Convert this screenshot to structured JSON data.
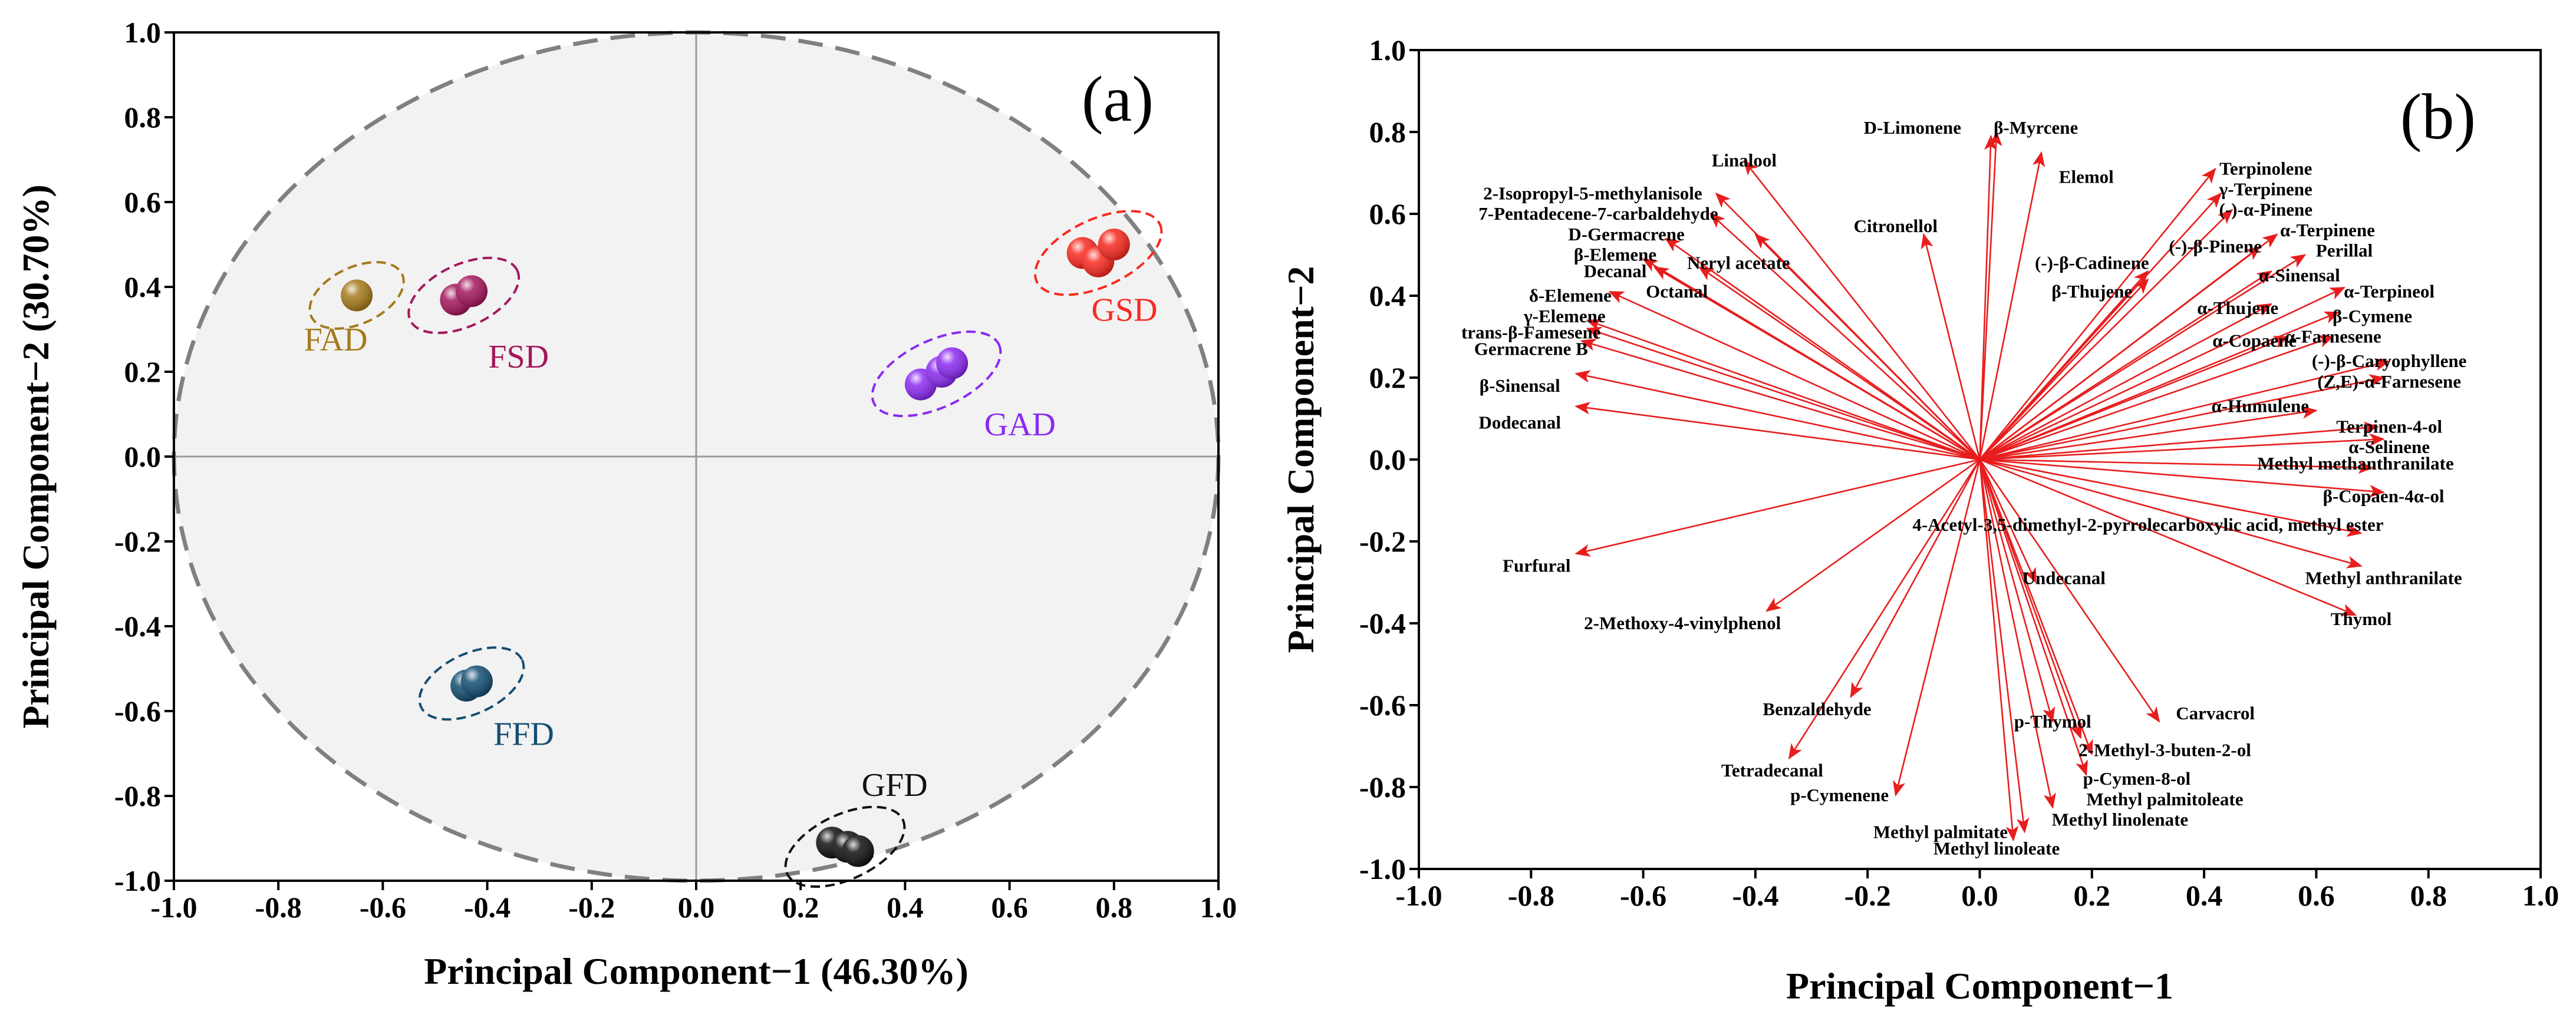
{
  "chart_data": [
    {
      "type": "scatter",
      "panel_label": "(a)",
      "xlabel": "Principal Component−1 (46.30%)",
      "ylabel": "Principal Component−2 (30.70%)",
      "xlim": [
        -1.0,
        1.0
      ],
      "ylim": [
        -1.0,
        1.0
      ],
      "xticks": [
        "-1.0",
        "-0.8",
        "-0.6",
        "-0.4",
        "-0.2",
        "0.0",
        "0.2",
        "0.4",
        "0.6",
        "0.8",
        "1.0"
      ],
      "yticks": [
        "1.0",
        "0.8",
        "0.6",
        "0.4",
        "0.2",
        "0.0",
        "-0.2",
        "-0.4",
        "-0.6",
        "-0.8",
        "-1.0"
      ],
      "grid": false,
      "confidence_circle": {
        "radius": 1.0
      },
      "series": [
        {
          "name": "FAD",
          "color": "#a57a1b",
          "points": [
            [
              -0.65,
              0.38
            ]
          ],
          "label_at": [
            -0.69,
            0.25
          ]
        },
        {
          "name": "FSD",
          "color": "#a3185c",
          "points": [
            [
              -0.46,
              0.37
            ],
            [
              -0.43,
              0.39
            ]
          ],
          "label_at": [
            -0.34,
            0.21
          ]
        },
        {
          "name": "GSD",
          "color": "#f72a20",
          "points": [
            [
              0.74,
              0.48
            ],
            [
              0.77,
              0.46
            ],
            [
              0.8,
              0.5
            ]
          ],
          "label_at": [
            0.82,
            0.32
          ]
        },
        {
          "name": "GAD",
          "color": "#8b2bf0",
          "points": [
            [
              0.43,
              0.17
            ],
            [
              0.47,
              0.2
            ],
            [
              0.49,
              0.22
            ]
          ],
          "label_at": [
            0.62,
            0.05
          ]
        },
        {
          "name": "FFD",
          "color": "#144e72",
          "points": [
            [
              -0.44,
              -0.54
            ],
            [
              -0.42,
              -0.53
            ]
          ],
          "label_at": [
            -0.33,
            -0.68
          ]
        },
        {
          "name": "GFD",
          "color": "#111111",
          "points": [
            [
              0.26,
              -0.91
            ],
            [
              0.29,
              -0.92
            ],
            [
              0.31,
              -0.93
            ]
          ],
          "label_at": [
            0.38,
            -0.8
          ]
        }
      ]
    },
    {
      "type": "biplot",
      "panel_label": "(b)",
      "xlabel": "Principal Component−1",
      "ylabel": "Principal Component−2",
      "xlim": [
        -1.0,
        1.0
      ],
      "ylim": [
        -1.0,
        1.0
      ],
      "xticks": [
        "-1.0",
        "-0.8",
        "-0.6",
        "-0.4",
        "-0.2",
        "0.0",
        "0.2",
        "0.4",
        "0.6",
        "0.8",
        "1.0"
      ],
      "yticks": [
        "1.0",
        "0.8",
        "0.6",
        "0.4",
        "0.2",
        "0.0",
        "-0.2",
        "-0.4",
        "-0.6",
        "-0.8",
        "-1.0"
      ],
      "arrow_color": "#e81d1d",
      "loadings": [
        {
          "name": "D-Limonene",
          "x": 0.02,
          "y": 0.79,
          "label_at": [
            -0.12,
            0.81
          ]
        },
        {
          "name": "β-Myrcene",
          "x": 0.03,
          "y": 0.8,
          "label_at": [
            0.1,
            0.81
          ]
        },
        {
          "name": "Elemol",
          "x": 0.11,
          "y": 0.75,
          "label_at": [
            0.19,
            0.69
          ]
        },
        {
          "name": "Linalool",
          "x": -0.42,
          "y": 0.73,
          "label_at": [
            -0.42,
            0.73
          ]
        },
        {
          "name": "Citronellol",
          "x": -0.1,
          "y": 0.55,
          "label_at": [
            -0.15,
            0.57
          ]
        },
        {
          "name": "2-Isopropyl-5-methylanisole",
          "x": -0.47,
          "y": 0.65,
          "label_at": [
            -0.69,
            0.65
          ]
        },
        {
          "name": "7-Pentadecene-7-carbaldehyde",
          "x": -0.48,
          "y": 0.6,
          "label_at": [
            -0.68,
            0.6
          ]
        },
        {
          "name": "D-Germacrene",
          "x": -0.56,
          "y": 0.54,
          "label_at": [
            -0.63,
            0.55
          ]
        },
        {
          "name": "β-Elemene",
          "x": -0.6,
          "y": 0.49,
          "label_at": [
            -0.65,
            0.5
          ]
        },
        {
          "name": "Decanal",
          "x": -0.58,
          "y": 0.47,
          "label_at": [
            -0.65,
            0.46
          ]
        },
        {
          "name": "Neryl acetate",
          "x": -0.4,
          "y": 0.55,
          "label_at": [
            -0.43,
            0.48
          ]
        },
        {
          "name": "Octanal",
          "x": -0.5,
          "y": 0.47,
          "label_at": [
            -0.54,
            0.41
          ]
        },
        {
          "name": "δ-Elemene",
          "x": -0.66,
          "y": 0.41,
          "label_at": [
            -0.73,
            0.4
          ]
        },
        {
          "name": "γ-Elemene",
          "x": -0.7,
          "y": 0.34,
          "label_at": [
            -0.74,
            0.35
          ]
        },
        {
          "name": "trans-β-Famesene",
          "x": -0.7,
          "y": 0.32,
          "label_at": [
            -0.8,
            0.31
          ]
        },
        {
          "name": "Germacrene B",
          "x": -0.71,
          "y": 0.29,
          "label_at": [
            -0.8,
            0.27
          ]
        },
        {
          "name": "β-Sinensal",
          "x": -0.72,
          "y": 0.21,
          "label_at": [
            -0.82,
            0.18
          ]
        },
        {
          "name": "Dodecanal",
          "x": -0.72,
          "y": 0.13,
          "label_at": [
            -0.82,
            0.09
          ]
        },
        {
          "name": "Furfural",
          "x": -0.72,
          "y": -0.23,
          "label_at": [
            -0.79,
            -0.26
          ]
        },
        {
          "name": "2-Methoxy-4-vinylphenol",
          "x": -0.38,
          "y": -0.37,
          "label_at": [
            -0.53,
            -0.4
          ]
        },
        {
          "name": "Benzaldehyde",
          "x": -0.23,
          "y": -0.58,
          "label_at": [
            -0.29,
            -0.61
          ]
        },
        {
          "name": "Tetradecanal",
          "x": -0.34,
          "y": -0.73,
          "label_at": [
            -0.37,
            -0.76
          ]
        },
        {
          "name": "p-Cymenene",
          "x": -0.15,
          "y": -0.82,
          "label_at": [
            -0.25,
            -0.82
          ]
        },
        {
          "name": "Methyl palmitate",
          "x": 0.06,
          "y": -0.93,
          "label_at": [
            -0.07,
            -0.91
          ]
        },
        {
          "name": "Methyl linoleate",
          "x": 0.08,
          "y": -0.91,
          "label_at": [
            0.03,
            -0.95
          ]
        },
        {
          "name": "Methyl linolenate",
          "x": 0.13,
          "y": -0.85,
          "label_at": [
            0.25,
            -0.88
          ]
        },
        {
          "name": "Methyl palmitoleate",
          "x": 0.19,
          "y": -0.77,
          "label_at": [
            0.33,
            -0.83
          ]
        },
        {
          "name": "p-Cymen-8-ol",
          "x": 0.2,
          "y": -0.72,
          "label_at": [
            0.28,
            -0.78
          ]
        },
        {
          "name": "2-Methyl-3-buten-2-ol",
          "x": 0.18,
          "y": -0.68,
          "label_at": [
            0.33,
            -0.71
          ]
        },
        {
          "name": "p-Thymol",
          "x": 0.13,
          "y": -0.64,
          "label_at": [
            0.13,
            -0.64
          ]
        },
        {
          "name": "Carvacrol",
          "x": 0.32,
          "y": -0.64,
          "label_at": [
            0.42,
            -0.62
          ]
        },
        {
          "name": "Undecanal",
          "x": 0.1,
          "y": -0.3,
          "label_at": [
            0.15,
            -0.29
          ]
        },
        {
          "name": "4-Acetyl-3,5-dimethyl-2-pyrrolecarboxylic acid, methyl ester",
          "x": 0.68,
          "y": -0.18,
          "label_at": [
            0.3,
            -0.16
          ]
        },
        {
          "name": "Methyl anthranilate",
          "x": 0.68,
          "y": -0.26,
          "label_at": [
            0.72,
            -0.29
          ]
        },
        {
          "name": "Thymol",
          "x": 0.67,
          "y": -0.38,
          "label_at": [
            0.68,
            -0.39
          ]
        },
        {
          "name": "β-Copaen-4α-ol",
          "x": 0.72,
          "y": -0.08,
          "label_at": [
            0.72,
            -0.09
          ]
        },
        {
          "name": "Methyl methanthranilate",
          "x": 0.7,
          "y": -0.02,
          "label_at": [
            0.67,
            -0.01
          ]
        },
        {
          "name": "α-Selinene",
          "x": 0.72,
          "y": 0.05,
          "label_at": [
            0.73,
            0.03
          ]
        },
        {
          "name": "Terpinen-4-ol",
          "x": 0.71,
          "y": 0.08,
          "label_at": [
            0.73,
            0.08
          ]
        },
        {
          "name": "α-Humulene",
          "x": 0.6,
          "y": 0.12,
          "label_at": [
            0.5,
            0.13
          ]
        },
        {
          "name": "(Z,E)-α-Farnesene",
          "x": 0.72,
          "y": 0.2,
          "label_at": [
            0.73,
            0.19
          ]
        },
        {
          "name": "(-)-β-Caryophyllene",
          "x": 0.73,
          "y": 0.24,
          "label_at": [
            0.73,
            0.24
          ]
        },
        {
          "name": "α-Farnesene",
          "x": 0.63,
          "y": 0.3,
          "label_at": [
            0.63,
            0.3
          ]
        },
        {
          "name": "α-Copaene",
          "x": 0.55,
          "y": 0.3,
          "label_at": [
            0.49,
            0.29
          ]
        },
        {
          "name": "β-Cymene",
          "x": 0.64,
          "y": 0.36,
          "label_at": [
            0.7,
            0.35
          ]
        },
        {
          "name": "α-Terpineol",
          "x": 0.65,
          "y": 0.42,
          "label_at": [
            0.73,
            0.41
          ]
        },
        {
          "name": "α-Thujene",
          "x": 0.52,
          "y": 0.38,
          "label_at": [
            0.46,
            0.37
          ]
        },
        {
          "name": "α-Sinensal",
          "x": 0.52,
          "y": 0.46,
          "label_at": [
            0.57,
            0.45
          ]
        },
        {
          "name": "Perillal",
          "x": 0.58,
          "y": 0.5,
          "label_at": [
            0.65,
            0.51
          ]
        },
        {
          "name": "α-Terpinene",
          "x": 0.53,
          "y": 0.55,
          "label_at": [
            0.62,
            0.56
          ]
        },
        {
          "name": "(-)-β-Pinene",
          "x": 0.5,
          "y": 0.52,
          "label_at": [
            0.42,
            0.52
          ]
        },
        {
          "name": "(-)-α-Pinene",
          "x": 0.45,
          "y": 0.61,
          "label_at": [
            0.51,
            0.61
          ]
        },
        {
          "name": "γ-Terpinene",
          "x": 0.43,
          "y": 0.65,
          "label_at": [
            0.51,
            0.66
          ]
        },
        {
          "name": "Terpinolene",
          "x": 0.42,
          "y": 0.71,
          "label_at": [
            0.51,
            0.71
          ]
        },
        {
          "name": "(-)-β-Cadinene",
          "x": 0.3,
          "y": 0.46,
          "label_at": [
            0.2,
            0.48
          ]
        },
        {
          "name": "β-Thujene",
          "x": 0.3,
          "y": 0.44,
          "label_at": [
            0.2,
            0.41
          ]
        }
      ]
    }
  ]
}
